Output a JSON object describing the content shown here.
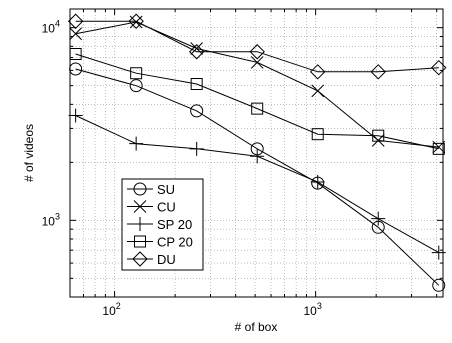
{
  "chart_data": {
    "type": "line",
    "title": "",
    "xlabel": "# of box",
    "ylabel": "# of videos",
    "xscale": "log",
    "yscale": "log",
    "xlim": [
      60,
      4300
    ],
    "ylim": [
      400,
      12500
    ],
    "grid": true,
    "legend_position": "bottom-left",
    "x_tick_labels": [
      {
        "value": 100,
        "base": "10",
        "exp": "2"
      },
      {
        "value": 1000,
        "base": "10",
        "exp": "3"
      }
    ],
    "y_tick_labels": [
      {
        "value": 1000,
        "base": "10",
        "exp": "3"
      },
      {
        "value": 10000,
        "base": "10",
        "exp": "4"
      }
    ],
    "x": [
      64,
      128,
      256,
      512,
      1024,
      2048,
      4096
    ],
    "series": [
      {
        "name": "SU",
        "marker": "circle",
        "values": [
          6100,
          5000,
          3700,
          2350,
          1560,
          920,
          460
        ]
      },
      {
        "name": "CU",
        "marker": "x",
        "values": [
          9300,
          10700,
          7800,
          6600,
          4700,
          2600,
          2400
        ]
      },
      {
        "name": "SP 20",
        "marker": "plus",
        "values": [
          3500,
          2500,
          2350,
          2150,
          1580,
          1020,
          680
        ]
      },
      {
        "name": "CP 20",
        "marker": "square",
        "values": [
          7300,
          5800,
          5100,
          3800,
          2800,
          2750,
          2350
        ]
      },
      {
        "name": "DU",
        "marker": "diamond",
        "values": [
          10800,
          10800,
          7500,
          7500,
          5900,
          5900,
          6200
        ]
      }
    ]
  }
}
